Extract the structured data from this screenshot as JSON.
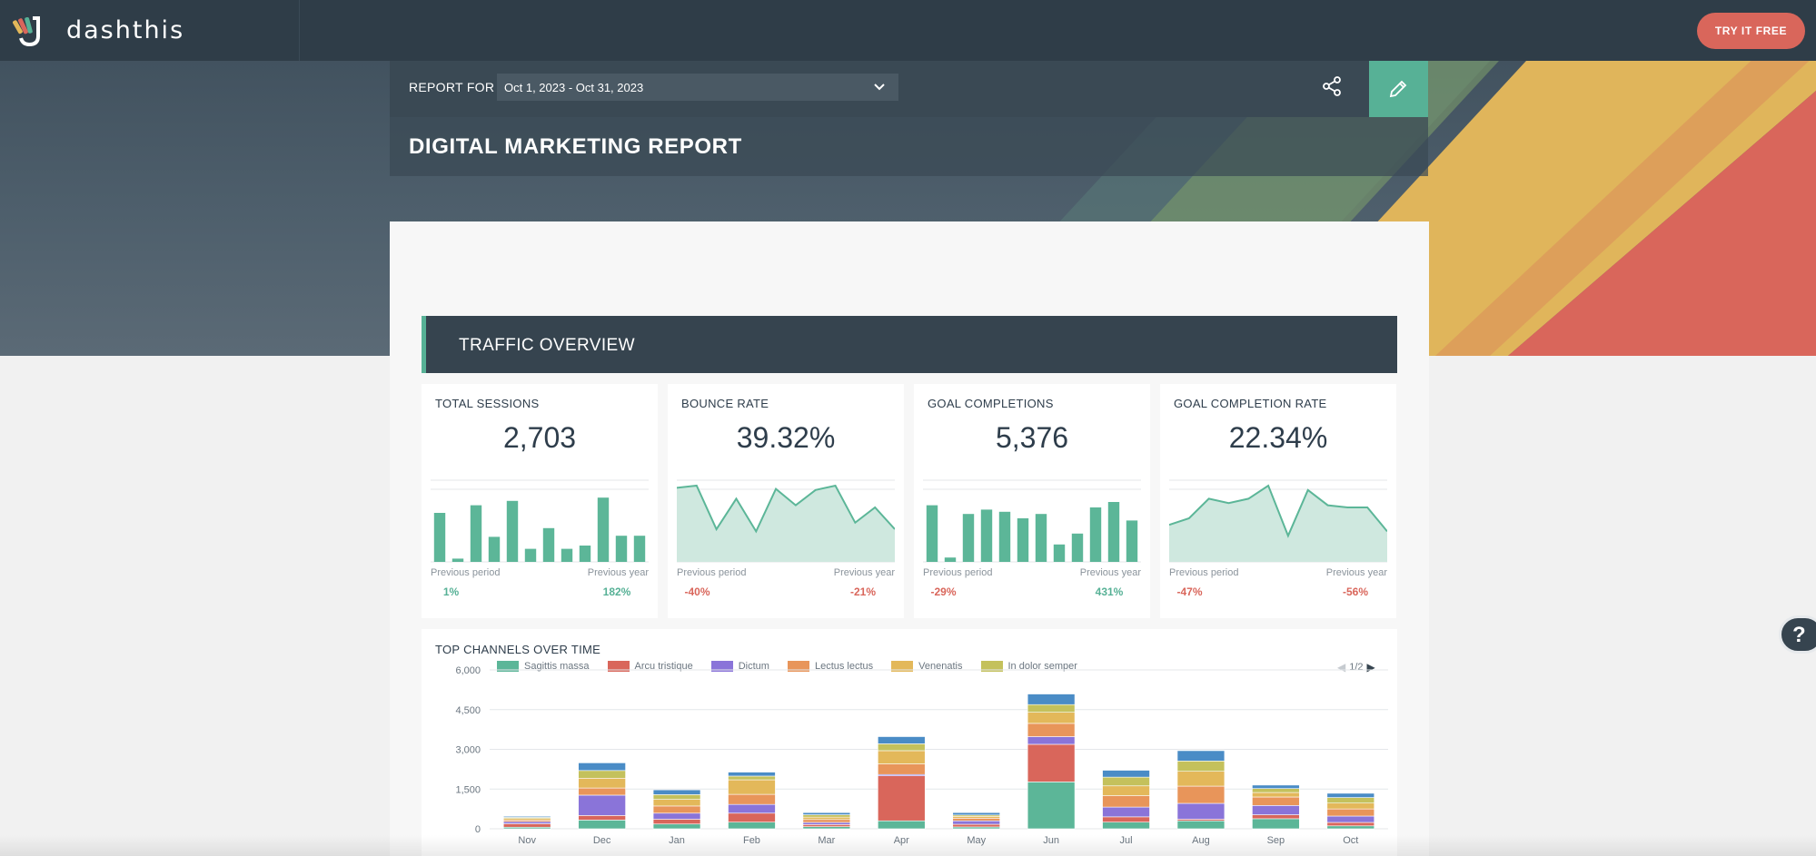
{
  "brand": {
    "name": "dashthis",
    "cta": "TRY IT FREE"
  },
  "report": {
    "report_for_label": "REPORT FOR",
    "date_range": "Oct 1, 2023 - Oct 31, 2023",
    "title": "DIGITAL MARKETING REPORT"
  },
  "section": {
    "title": "TRAFFIC OVERVIEW"
  },
  "kpis": [
    {
      "label": "TOTAL SESSIONS",
      "value": "2,703",
      "prev_period_label": "Previous period",
      "prev_year_label": "Previous year",
      "prev_period": "1%",
      "prev_year": "182%",
      "prev_period_status": "up",
      "prev_year_status": "up",
      "spark_type": "bar",
      "spark": [
        45,
        3,
        52,
        23,
        56,
        12,
        31,
        12,
        15,
        59,
        24,
        24
      ]
    },
    {
      "label": "BOUNCE RATE",
      "value": "39.32%",
      "prev_period_label": "Previous period",
      "prev_year_label": "Previous year",
      "prev_period": "-40%",
      "prev_year": "-21%",
      "prev_period_status": "down",
      "prev_year_status": "down",
      "spark_type": "area",
      "spark": [
        68,
        70,
        30,
        58,
        28,
        67,
        52,
        66,
        70,
        36,
        50,
        30
      ]
    },
    {
      "label": "GOAL COMPLETIONS",
      "value": "5,376",
      "prev_period_label": "Previous period",
      "prev_year_label": "Previous year",
      "prev_period": "-29%",
      "prev_year": "431%",
      "prev_period_status": "down",
      "prev_year_status": "up",
      "spark_type": "bar",
      "spark": [
        52,
        4,
        44,
        48,
        46,
        40,
        44,
        16,
        26,
        50,
        55,
        38
      ]
    },
    {
      "label": "GOAL COMPLETION RATE",
      "value": "22.34%",
      "prev_period_label": "Previous period",
      "prev_year_label": "Previous year",
      "prev_period": "-47%",
      "prev_year": "-56%",
      "prev_period_status": "down",
      "prev_year_status": "down",
      "spark_type": "area",
      "spark": [
        34,
        40,
        58,
        54,
        58,
        70,
        24,
        66,
        52,
        50,
        50,
        28
      ]
    }
  ],
  "colors": {
    "accent_green": "#57b196",
    "accent_red": "#d9665b",
    "dark_slate": "#36444f"
  },
  "chart_data": {
    "type": "bar",
    "title": "TOP CHANNELS OVER TIME",
    "pager": "1/2",
    "categories": [
      "Nov",
      "Dec",
      "Jan",
      "Feb",
      "Mar",
      "Apr",
      "May",
      "Jun",
      "Jul",
      "Aug",
      "Sep",
      "Oct"
    ],
    "ylim": [
      0,
      6000
    ],
    "yticks": [
      "0",
      "1,500",
      "3,000",
      "4,500",
      "6,000"
    ],
    "stacked": true,
    "series": [
      {
        "name": "Sagittis massa",
        "color": "#5cb698",
        "values": [
          60,
          330,
          180,
          250,
          80,
          300,
          70,
          1770,
          250,
          300,
          380,
          110
        ]
      },
      {
        "name": "Arcu tristique",
        "color": "#d9665b",
        "values": [
          130,
          170,
          180,
          340,
          80,
          1700,
          100,
          1420,
          200,
          60,
          150,
          130
        ]
      },
      {
        "name": "Dictum",
        "color": "#8a74d9",
        "values": [
          80,
          770,
          230,
          330,
          80,
          50,
          130,
          290,
          370,
          600,
          350,
          240
        ]
      },
      {
        "name": "Lectus lectus",
        "color": "#e8955a",
        "values": [
          60,
          270,
          270,
          380,
          110,
          400,
          100,
          500,
          430,
          650,
          320,
          270
        ]
      },
      {
        "name": "Venenatis",
        "color": "#e3b85a",
        "values": [
          60,
          370,
          250,
          550,
          90,
          500,
          70,
          420,
          370,
          560,
          170,
          220
        ]
      },
      {
        "name": "In dolor semper",
        "color": "#c4c15c",
        "values": [
          40,
          290,
          180,
          140,
          90,
          260,
          50,
          290,
          330,
          390,
          150,
          210
        ]
      },
      {
        "name": "",
        "color": "#4a8cc6",
        "values": [
          40,
          290,
          180,
          150,
          80,
          270,
          90,
          400,
          260,
          390,
          130,
          160
        ]
      }
    ]
  }
}
